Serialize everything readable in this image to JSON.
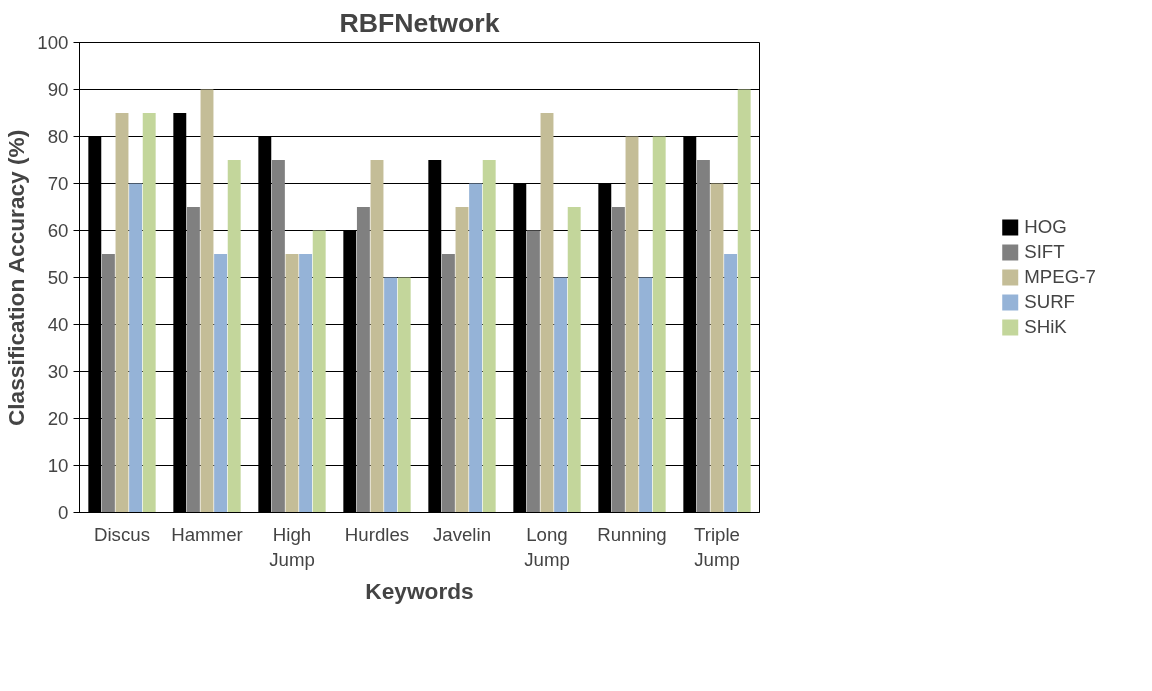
{
  "chart_data": {
    "type": "bar",
    "title": "RBFNetwork",
    "xlabel": "Keywords",
    "ylabel": "Classification Accuracy (%)",
    "categories": [
      "Discus",
      "Hammer",
      "High\nJump",
      "Hurdles",
      "Javelin",
      "Long\nJump",
      "Running",
      "Triple\nJump"
    ],
    "series": [
      {
        "name": "HOG",
        "color": "#000000",
        "values": [
          80,
          85,
          80,
          60,
          75,
          70,
          70,
          80
        ]
      },
      {
        "name": "SIFT",
        "color": "#808080",
        "values": [
          55,
          65,
          75,
          65,
          55,
          60,
          65,
          75
        ]
      },
      {
        "name": "MPEG-7",
        "color": "#c4bd97",
        "values": [
          85,
          90,
          55,
          75,
          65,
          85,
          80,
          70
        ]
      },
      {
        "name": "SURF",
        "color": "#95b3d7",
        "values": [
          70,
          55,
          55,
          50,
          70,
          50,
          50,
          55
        ]
      },
      {
        "name": "SHiK",
        "color": "#c3d69b",
        "values": [
          85,
          75,
          60,
          50,
          75,
          65,
          80,
          90
        ]
      }
    ],
    "ylim": [
      0,
      100
    ],
    "yticks": [
      0,
      10,
      20,
      30,
      40,
      50,
      60,
      70,
      80,
      90,
      100
    ],
    "grid": "y",
    "legend": "right"
  }
}
